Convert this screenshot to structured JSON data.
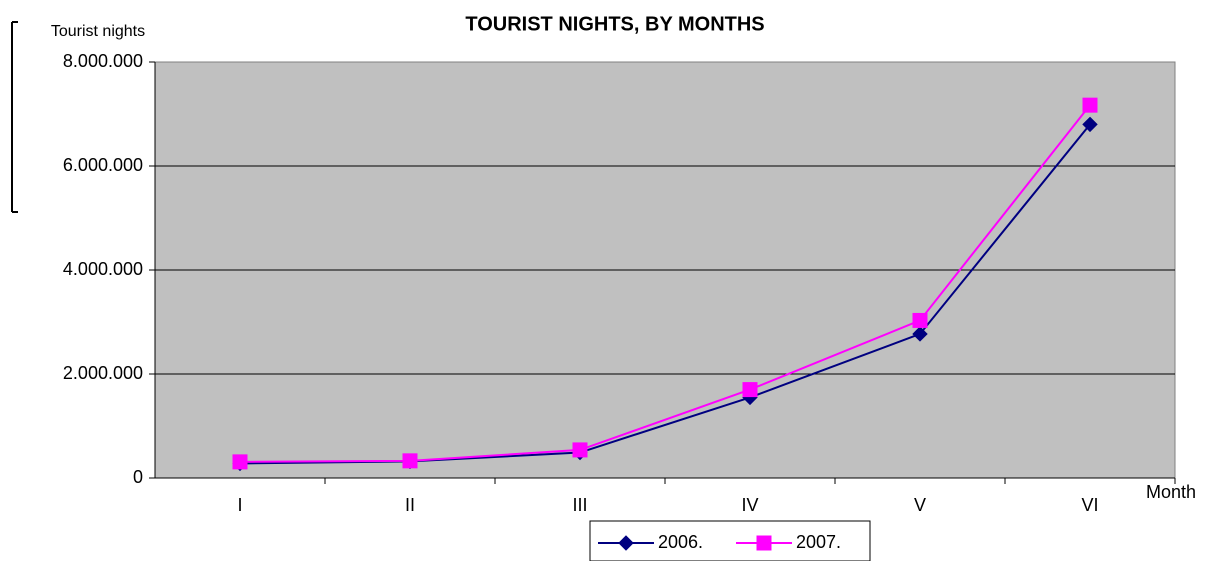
{
  "chart_data": {
    "type": "line",
    "title": "TOURIST NIGHTS, BY MONTHS",
    "y_label": "Tourist nights",
    "x_label": "Month",
    "categories": [
      "I",
      "II",
      "III",
      "IV",
      "V",
      "VI"
    ],
    "series": [
      {
        "name": "2006.",
        "color": "#000080",
        "marker": "diamond",
        "values": [
          280000,
          320000,
          490000,
          1550000,
          2770000,
          6800000
        ]
      },
      {
        "name": "2007.",
        "color": "#ff00ff",
        "marker": "square",
        "values": [
          310000,
          330000,
          540000,
          1700000,
          3030000,
          7170000
        ]
      }
    ],
    "ylim": [
      0,
      8000000
    ],
    "yticks": [
      0,
      {
        "value": 2000000,
        "label": "2.000.000"
      },
      {
        "value": 4000000,
        "label": "4.000.000"
      },
      {
        "value": 6000000,
        "label": "6.000.000"
      },
      {
        "value": 8000000,
        "label": "8.000.000"
      }
    ],
    "grid": true,
    "legend": "bottom"
  }
}
